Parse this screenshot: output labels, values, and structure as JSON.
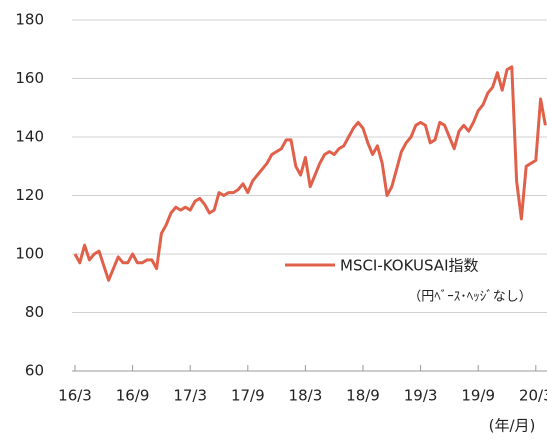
{
  "chart_data": {
    "type": "line",
    "categories": [
      "16/3",
      null,
      null,
      null,
      null,
      null,
      null,
      null,
      null,
      null,
      null,
      null,
      "16/9",
      null,
      null,
      null,
      null,
      null,
      null,
      null,
      null,
      null,
      null,
      null,
      "17/3",
      null,
      null,
      null,
      null,
      null,
      null,
      null,
      null,
      null,
      null,
      null,
      "17/9",
      null,
      null,
      null,
      null,
      null,
      null,
      null,
      null,
      null,
      null,
      null,
      "18/3",
      null,
      null,
      null,
      null,
      null,
      null,
      null,
      null,
      null,
      null,
      null,
      "18/9",
      null,
      null,
      null,
      null,
      null,
      null,
      null,
      null,
      null,
      null,
      null,
      "19/3",
      null,
      null,
      null,
      null,
      null,
      null,
      null,
      null,
      null,
      null,
      null,
      "19/9",
      null,
      null,
      null,
      null,
      null,
      null,
      null,
      null,
      null,
      null,
      null,
      "20/3",
      null,
      null
    ],
    "series": [
      {
        "name": "MSCI-KOKUSAI指数",
        "color": "#e0604a",
        "values": [
          100,
          97,
          103,
          98,
          100,
          101,
          96,
          91,
          95,
          99,
          97,
          97,
          100,
          97,
          97,
          98,
          98,
          95,
          107,
          110,
          114,
          116,
          115,
          116,
          115,
          118,
          119,
          117,
          114,
          115,
          121,
          120,
          121,
          121,
          122,
          124,
          121,
          125,
          127,
          129,
          131,
          134,
          135,
          136,
          139,
          139,
          130,
          127,
          133,
          123,
          127,
          131,
          134,
          135,
          134,
          136,
          137,
          140,
          143,
          145,
          143,
          138,
          134,
          137,
          131,
          120,
          123,
          129,
          135,
          138,
          140,
          144,
          145,
          144,
          138,
          139,
          145,
          144,
          140,
          136,
          142,
          144,
          142,
          145,
          149,
          151,
          155,
          157,
          162,
          156,
          163,
          164,
          125,
          112,
          130,
          131,
          132,
          153,
          144
        ]
      }
    ],
    "legend_note": "（円ﾍﾞｰｽ･ﾍｯｼﾞなし）",
    "x_label": "(年/月)",
    "ylim": [
      60,
      180
    ],
    "yticks": [
      60,
      80,
      100,
      120,
      140,
      160,
      180
    ],
    "grid": true
  }
}
